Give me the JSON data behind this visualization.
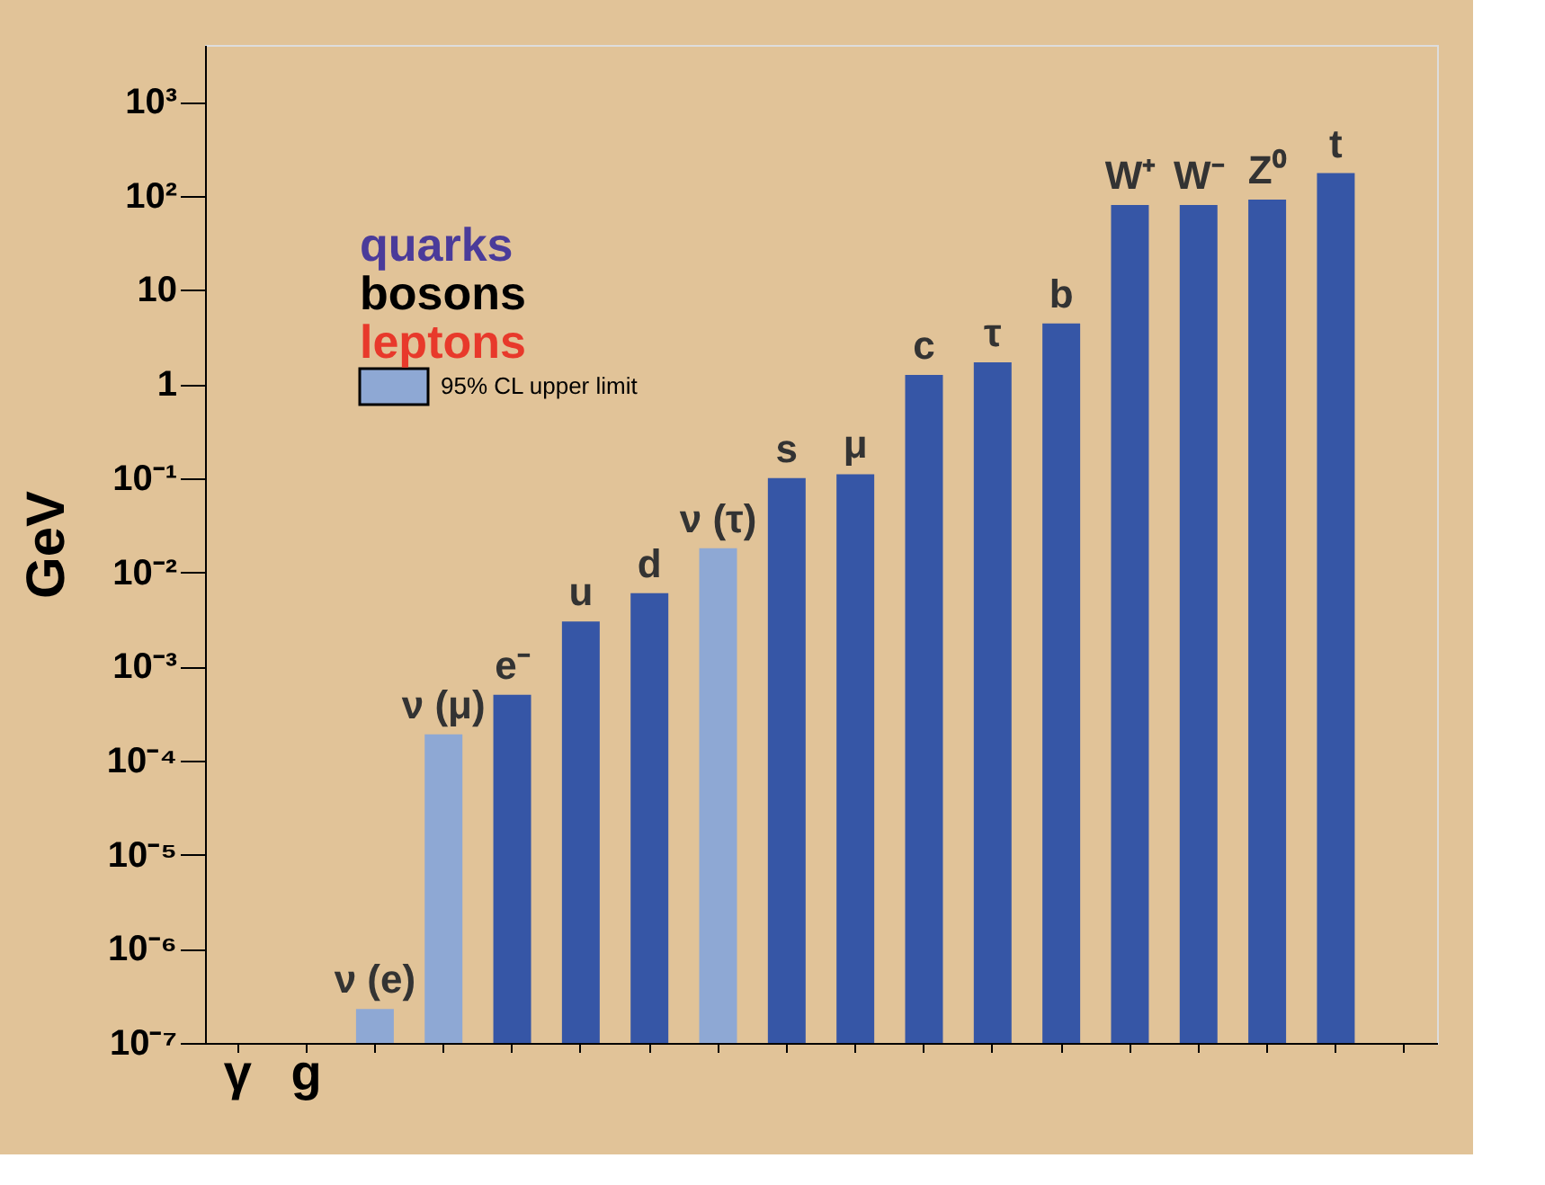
{
  "chart_data": {
    "type": "bar",
    "ylabel": "GeV",
    "categories": [
      "γ",
      "g",
      "ν (e)",
      "ν (μ)",
      "e⁻",
      "u",
      "d",
      "ν (τ)",
      "s",
      "μ",
      "c",
      "τ",
      "b",
      "W⁺",
      "W⁻",
      "Z⁰",
      "t",
      null
    ],
    "series": [
      {
        "color": "#3656a6",
        "values": [
          null,
          null,
          null,
          null,
          0.0005,
          0.003,
          0.006,
          null,
          0.1,
          0.11,
          1.25,
          1.7,
          4.4,
          80,
          80,
          91,
          174,
          null
        ]
      },
      {
        "name": "95% CL upper limit",
        "color": "#8ea8d4",
        "values": [
          null,
          null,
          2.3e-07,
          0.00019,
          null,
          null,
          null,
          0.018,
          null,
          null,
          null,
          null,
          null,
          null,
          null,
          null,
          null,
          null
        ]
      }
    ],
    "log": "y",
    "ylim": [
      1e-07,
      4000
    ],
    "yticks": [
      {
        "value": 1e-07,
        "label": "10⁻⁷"
      },
      {
        "value": 1e-06,
        "label": "10⁻⁶"
      },
      {
        "value": 1e-05,
        "label": "10⁻⁵"
      },
      {
        "value": 0.0001,
        "label": "10⁻⁴"
      },
      {
        "value": 0.001,
        "label": "10⁻³"
      },
      {
        "value": 0.01,
        "label": "10⁻²"
      },
      {
        "value": 0.1,
        "label": "10⁻¹"
      },
      1,
      10,
      {
        "value": 100,
        "label": "10²"
      },
      {
        "value": 1000,
        "label": "10³"
      }
    ],
    "tick_labels": "y",
    "legend": "top left",
    "grid": false,
    "annotations": [
      "quarks",
      "bosons",
      "leptons"
    ]
  }
}
